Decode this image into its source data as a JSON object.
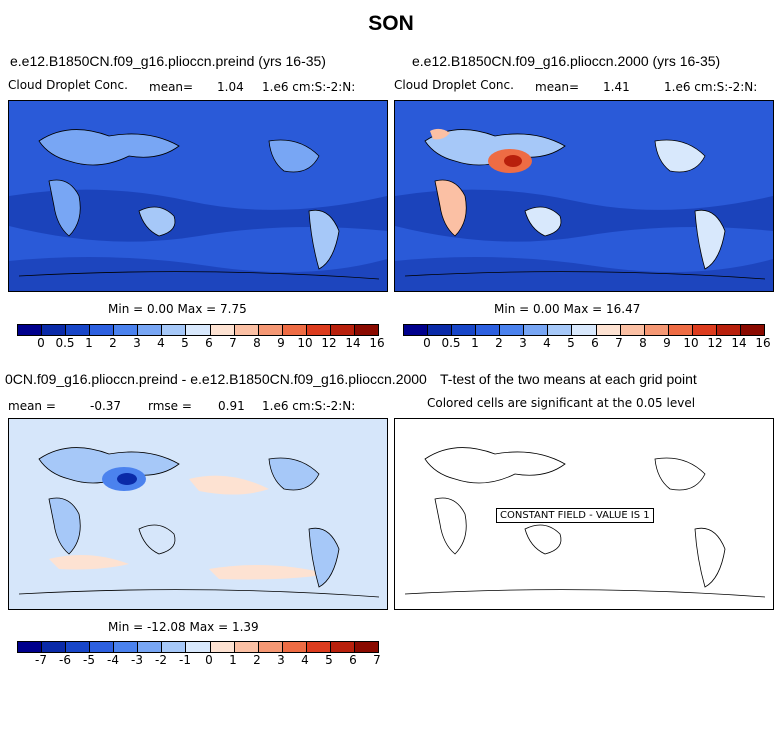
{
  "page_title": "SON",
  "panels": [
    {
      "title": "e.e12.B1850CN.f09_g16.plioccn.preind (yrs 16-35)",
      "left_label": "Cloud Droplet Conc.",
      "mean_label": "mean=",
      "mean_value": "1.04",
      "units": "1.e6 cm:S:-2:N:",
      "minmax": "Min =    0.00 Max =    7.75",
      "map_fill": "blue-field"
    },
    {
      "title": "e.e12.B1850CN.f09_g16.plioccn.2000 (yrs 16-35)",
      "left_label": "Cloud Droplet Conc.",
      "mean_label": "mean=",
      "mean_value": "1.41",
      "units": "1.e6 cm:S:-2:N:",
      "minmax": "Min =    0.00 Max =   16.47",
      "map_fill": "blue-field-with-red-hotspots"
    },
    {
      "title": "0CN.f09_g16.plioccn.preind - e.e12.B1850CN.f09_g16.plioccn.2000",
      "mean_label": "mean =",
      "mean_value": "-0.37",
      "rmse_label": "rmse =",
      "rmse_value": "0.91",
      "units": "1.e6 cm:S:-2:N:",
      "minmax": "Min =  -12.08 Max =    1.39",
      "map_fill": "light-blue-field-with-negative-anomalies"
    },
    {
      "title": "T-test of the two means at each grid point",
      "subtitle": "Colored cells are significant at the 0.05 level",
      "constant_label": "CONSTANT FIELD - VALUE IS 1",
      "map_fill": "white-field"
    }
  ],
  "colorbars": {
    "absolute": {
      "ticks": [
        "0",
        "0.5",
        "1",
        "2",
        "3",
        "4",
        "5",
        "6",
        "7",
        "8",
        "9",
        "10",
        "12",
        "14",
        "16"
      ],
      "colors": [
        "#00008c",
        "#0a2aa8",
        "#1846c8",
        "#2d60e0",
        "#4b82ee",
        "#78a6f4",
        "#a6c8f8",
        "#d8e8fc",
        "#fde2d2",
        "#fbc0a4",
        "#f59874",
        "#ee6c44",
        "#dc3c1e",
        "#b8200c",
        "#8a0a00"
      ]
    },
    "difference": {
      "ticks": [
        "-7",
        "-6",
        "-5",
        "-4",
        "-3",
        "-2",
        "-1",
        "0",
        "1",
        "2",
        "3",
        "4",
        "5",
        "6",
        "7"
      ],
      "colors": [
        "#00008c",
        "#0a2aa8",
        "#1846c8",
        "#2d60e0",
        "#4b82ee",
        "#78a6f4",
        "#a6c8f8",
        "#d8e8fc",
        "#fde2d2",
        "#fbc0a4",
        "#f59874",
        "#ee6c44",
        "#dc3c1e",
        "#b8200c",
        "#8a0a00"
      ]
    }
  },
  "colors": {
    "ocean_blue": "#2a5ad8",
    "deep_blue": "#1a40b8",
    "light_blue": "#d6e6fa",
    "peach": "#fde2d2",
    "red": "#dc3c1e"
  }
}
